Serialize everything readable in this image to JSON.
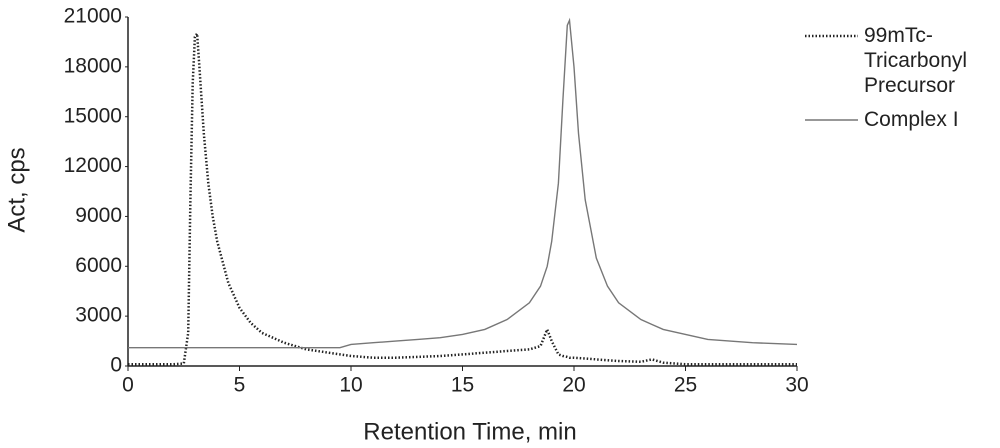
{
  "chart_data": {
    "type": "line",
    "x_label": "Retention Time, min",
    "y_label": "Act, cps",
    "x": [
      0,
      1,
      2,
      2.5,
      2.7,
      2.8,
      2.9,
      3,
      3.1,
      3.2,
      3.4,
      3.6,
      3.8,
      4,
      4.5,
      5,
      5.5,
      6,
      7,
      8,
      9,
      9.5,
      10,
      11,
      12,
      13,
      14,
      15,
      16,
      17,
      18,
      18.5,
      18.8,
      19,
      19.3,
      19.5,
      19.7,
      19.8,
      20,
      20.2,
      20.5,
      21,
      21.5,
      22,
      23,
      23.5,
      24,
      25,
      26,
      27,
      28,
      29,
      30
    ],
    "series": [
      {
        "name": "99mTc-Tricarbonyl Precursor",
        "color": "#222222",
        "style": "dotted",
        "values": [
          100,
          100,
          100,
          150,
          2000,
          10000,
          17000,
          19800,
          20000,
          18000,
          14000,
          11000,
          9000,
          7500,
          5000,
          3500,
          2600,
          2000,
          1400,
          1000,
          800,
          700,
          600,
          500,
          500,
          550,
          600,
          700,
          800,
          900,
          1000,
          1200,
          2200,
          1500,
          700,
          600,
          550,
          500,
          500,
          480,
          450,
          400,
          350,
          300,
          250,
          400,
          200,
          100,
          100,
          100,
          100,
          100,
          100
        ]
      },
      {
        "name": "Complex I",
        "color": "#777777",
        "style": "solid",
        "values": [
          1100,
          1100,
          1100,
          1100,
          1100,
          1100,
          1100,
          1100,
          1100,
          1100,
          1100,
          1100,
          1100,
          1100,
          1100,
          1100,
          1100,
          1100,
          1100,
          1100,
          1100,
          1100,
          1300,
          1400,
          1500,
          1600,
          1700,
          1900,
          2200,
          2800,
          3800,
          4800,
          6000,
          7500,
          11000,
          16000,
          20500,
          20800,
          18000,
          14000,
          10000,
          6500,
          4800,
          3800,
          2800,
          2500,
          2200,
          1900,
          1600,
          1500,
          1400,
          1350,
          1300
        ]
      }
    ],
    "xlim": [
      0,
      30
    ],
    "xticks": [
      0,
      5,
      10,
      15,
      20,
      25,
      30
    ],
    "ylim": [
      0,
      21000
    ],
    "yticks": [
      0,
      3000,
      6000,
      9000,
      12000,
      15000,
      18000,
      21000
    ],
    "grid": false
  }
}
